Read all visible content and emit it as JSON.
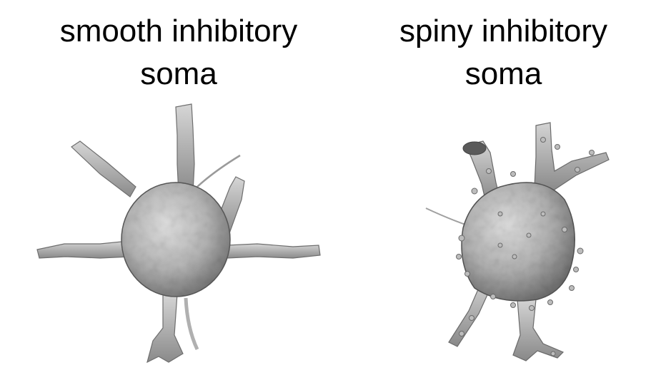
{
  "panels": [
    {
      "caption_line1": "smooth inhibitory",
      "caption_line2": "soma"
    },
    {
      "caption_line1": "spiny inhibitory",
      "caption_line2": "soma"
    }
  ],
  "colors": {
    "background": "#ffffff",
    "text": "#000000",
    "surface_light": "#d8d8d8",
    "surface_mid": "#a8a8a8",
    "surface_dark": "#5a5a5a"
  }
}
